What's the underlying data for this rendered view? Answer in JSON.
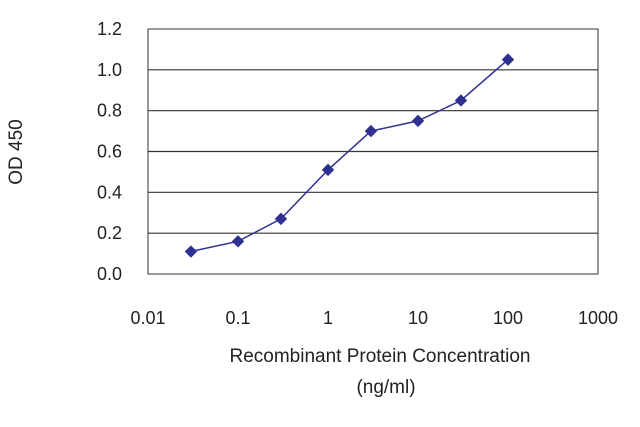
{
  "chart_data": {
    "type": "line",
    "title": "",
    "xlabel_line1": "Recombinant Protein Concentration",
    "xlabel_line2": "(ng/ml)",
    "ylabel": "OD 450",
    "x_scale": "log",
    "xlim": [
      0.01,
      1000
    ],
    "ylim": [
      0.0,
      1.2
    ],
    "x_ticks": [
      "0.01",
      "0.1",
      "1",
      "10",
      "100",
      "1000"
    ],
    "y_ticks": [
      "0.0",
      "0.2",
      "0.4",
      "0.6",
      "0.8",
      "1.0",
      "1.2"
    ],
    "grid": "horizontal",
    "series": [
      {
        "color": "#2e3192",
        "x": [
          0.03,
          0.1,
          0.3,
          1,
          3,
          10,
          30,
          100
        ],
        "y": [
          0.11,
          0.16,
          0.27,
          0.51,
          0.7,
          0.75,
          0.85,
          1.05
        ]
      }
    ]
  }
}
